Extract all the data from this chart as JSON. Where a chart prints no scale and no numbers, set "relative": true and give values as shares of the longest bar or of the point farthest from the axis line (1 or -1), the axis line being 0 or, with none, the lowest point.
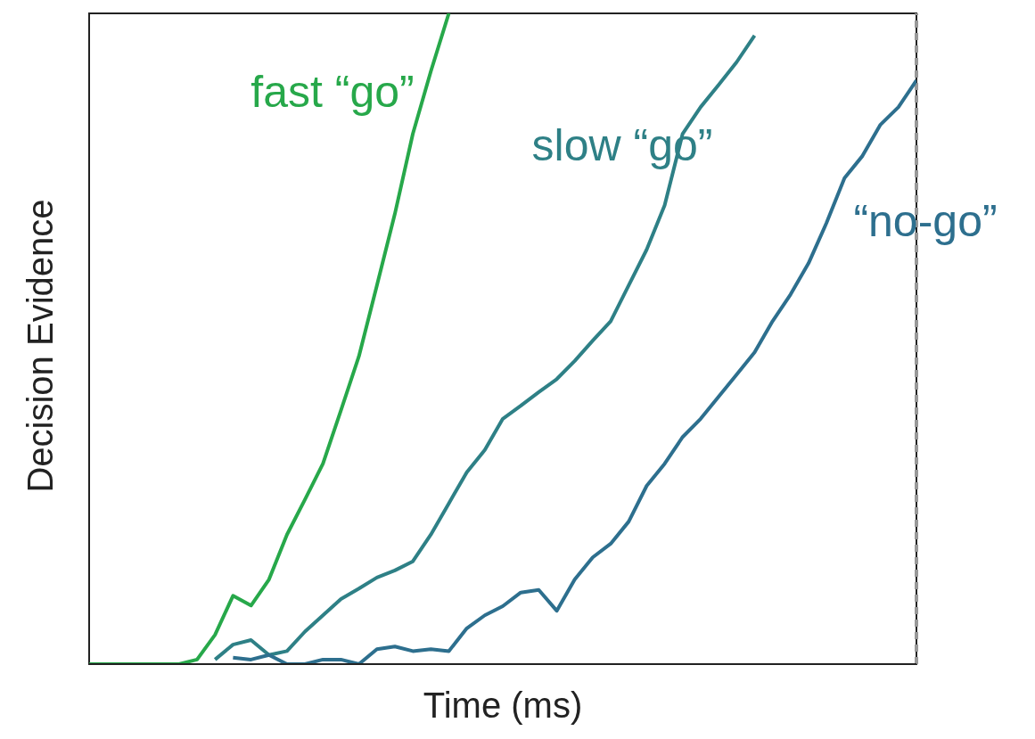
{
  "chart_data": {
    "type": "line",
    "relative": true,
    "xlabel": "Time (ms)",
    "ylabel": "Decision Evidence",
    "marker": "none",
    "categories": [
      null,
      null,
      null,
      null,
      null,
      null,
      null,
      null,
      null,
      null,
      null,
      null,
      null,
      null,
      null,
      null,
      null,
      null,
      null,
      null,
      null,
      null,
      null,
      null,
      null,
      null,
      null,
      null,
      null,
      null,
      null,
      null,
      null,
      null,
      null,
      null,
      null,
      null,
      null,
      null,
      null,
      null,
      null,
      null,
      null,
      null,
      null
    ],
    "series": [
      {
        "name": "fast “go”",
        "color": "#27a84a",
        "values": [
          0,
          0,
          0,
          0,
          0,
          0,
          0.007,
          0.045,
          0.105,
          0.09,
          0.13,
          0.199,
          0.253,
          0.308,
          0.39,
          0.473,
          0.582,
          0.692,
          0.815,
          0.911,
          1,
          null,
          null,
          null,
          null,
          null,
          null,
          null,
          null,
          null,
          null,
          null,
          null,
          null,
          null,
          null,
          null,
          null,
          null,
          null,
          null,
          null,
          null,
          null,
          null,
          null,
          null
        ]
      },
      {
        "name": "slow “go”",
        "color": "#2e8086",
        "values": [
          null,
          null,
          null,
          null,
          null,
          null,
          null,
          0.007,
          0.03,
          0.037,
          0.014,
          0.02,
          0.05,
          0.075,
          0.1,
          0.116,
          0.133,
          0.144,
          0.158,
          0.199,
          0.247,
          0.295,
          0.329,
          0.377,
          0.397,
          0.418,
          0.438,
          0.466,
          0.497,
          0.527,
          0.582,
          0.637,
          0.705,
          0.815,
          0.856,
          0.89,
          0.925,
          0.966,
          null,
          null,
          null,
          null,
          null,
          null,
          null,
          null,
          null
        ]
      },
      {
        "name": "“no-go”",
        "color": "#2d6f8e",
        "values": [
          null,
          null,
          null,
          null,
          null,
          null,
          null,
          null,
          0.01,
          0.007,
          0.014,
          0,
          0,
          0.007,
          0.007,
          0,
          0.023,
          0.027,
          0.02,
          0.023,
          0.02,
          0.055,
          0.075,
          0.089,
          0.11,
          0.114,
          0.082,
          0.13,
          0.164,
          0.185,
          0.219,
          0.274,
          0.308,
          0.349,
          0.377,
          0.411,
          0.445,
          0.479,
          0.527,
          0.568,
          0.616,
          0.678,
          0.747,
          0.781,
          0.829,
          0.856,
          0.897
        ]
      }
    ],
    "ref_lines": [
      {
        "axis": "x",
        "value": null,
        "color": "#999999",
        "line_style": "dashed"
      }
    ]
  }
}
